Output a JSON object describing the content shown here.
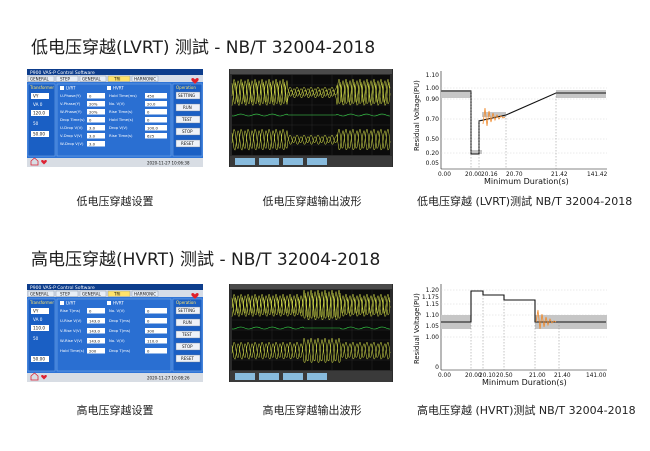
{
  "sections": [
    {
      "heading": "低电压穿越(LVRT) 测試 - NB/T 32004-2018",
      "captions": [
        "低电压穿越设置",
        "低电压穿越输出波形",
        "低电压穿越 (LVRT)测試 NB/T 32004-2018"
      ],
      "software": {
        "app_title": "P900 VAS-P Control Software",
        "tabs": [
          "GENERAL",
          "STEP",
          "GENERAL",
          "TRI",
          "HARMONIC"
        ],
        "left_label": "Transformer",
        "mode_labels": [
          "LVRT",
          "HVRT"
        ],
        "fields": [
          {
            "label": "U-Phase(Y)",
            "value": "0"
          },
          {
            "label": "V-Phase(Y)",
            "value": "20%"
          },
          {
            "label": "W-Phase(Y)",
            "value": "20%"
          },
          {
            "label": "Drop Time(s)",
            "value": "0"
          },
          {
            "label": "U-Drop V(V)",
            "value": "3.0"
          },
          {
            "label": "V-Drop V(V)",
            "value": "3.0"
          },
          {
            "label": "W-Drop V(V)",
            "value": "3.0"
          }
        ],
        "right_fields": [
          {
            "label": "Hold Time(ms)",
            "value": "450"
          },
          {
            "label": "No. V(V)",
            "value": "20.0"
          },
          {
            "label": "Rise Time(s)",
            "value": "0"
          },
          {
            "label": "Hold Time(s)",
            "value": "0"
          },
          {
            "label": "Drop V(V)",
            "value": "100.0"
          },
          {
            "label": "Rise Time(s)",
            "value": "625"
          }
        ],
        "left_values": [
          "VY",
          "VA 0",
          "120.0",
          "50",
          "50.00"
        ],
        "side_title": "Operation",
        "buttons": [
          "SETTING",
          "RUN",
          "TEST",
          "STOP",
          "RESET"
        ],
        "timestamp": "2020-11-27 10:06:38"
      },
      "chart": {
        "ylabel": "Residual Voltage(PU)",
        "xlabel": "Minimum Duration(s)",
        "yticks": [
          "1.10",
          "1.00",
          "0.90",
          "0.70",
          "0.50",
          "0.20",
          "0.05",
          "0"
        ],
        "xticks": [
          "0.00",
          "20.00",
          "20.16",
          "20.70",
          "21.42",
          "141.42"
        ]
      }
    },
    {
      "heading": "高电压穿越(HVRT) 测試 - NB/T 32004-2018",
      "captions": [
        "高电压穿越设置",
        "高电压穿越输出波形",
        "高电压穿越 (HVRT)测試 NB/T 32004-2018"
      ],
      "software": {
        "app_title": "P900 VAS-P Control Software",
        "tabs": [
          "GENERAL",
          "STEP",
          "GENERAL",
          "TRI",
          "HARMONIC"
        ],
        "left_label": "Transformer",
        "mode_labels": [
          "LVRT",
          "HVRT"
        ],
        "fields": [
          {
            "label": "Rise T(ms)",
            "value": "0"
          },
          {
            "label": "U-Rise V(V)",
            "value": "143.0"
          },
          {
            "label": "V-Rise V(V)",
            "value": "143.0"
          },
          {
            "label": "W-Rise V(V)",
            "value": "143.0"
          },
          {
            "label": "Hold Time(s)",
            "value": "200"
          }
        ],
        "right_fields": [
          {
            "label": "No. V(V)",
            "value": "0"
          },
          {
            "label": "Drop T(ms)",
            "value": "0"
          },
          {
            "label": "Drop T(ms)",
            "value": "300"
          },
          {
            "label": "No. V(V)",
            "value": "110.0"
          },
          {
            "label": "Drop T(ms)",
            "value": "0"
          }
        ],
        "left_values": [
          "VY",
          "VA 0",
          "110.0",
          "50",
          "50.00"
        ],
        "side_title": "Operation",
        "buttons": [
          "SETTING",
          "RUN",
          "TEST",
          "STOP",
          "RESET"
        ],
        "timestamp": "2020-11-27 10:08:26"
      },
      "chart": {
        "ylabel": "Residual Voltage(PU)",
        "xlabel": "Minimum Duration(s)",
        "yticks": [
          "1.20",
          "1.175",
          "1.15",
          "1.10",
          "1.05",
          "1.00",
          "0"
        ],
        "xticks": [
          "0.00",
          "20.00",
          "20.10",
          "20.50",
          "21.00",
          "21.40",
          "141.00"
        ]
      }
    }
  ],
  "colors": {
    "app_blue": "#1a63c8",
    "window_blue": "#3e84de",
    "scope_yellow": "#e8dd23",
    "scope_green": "#38e04a",
    "chart_band": "#c8c8c8",
    "chart_line": "#111111",
    "osc_orange": "#f08a2c"
  }
}
